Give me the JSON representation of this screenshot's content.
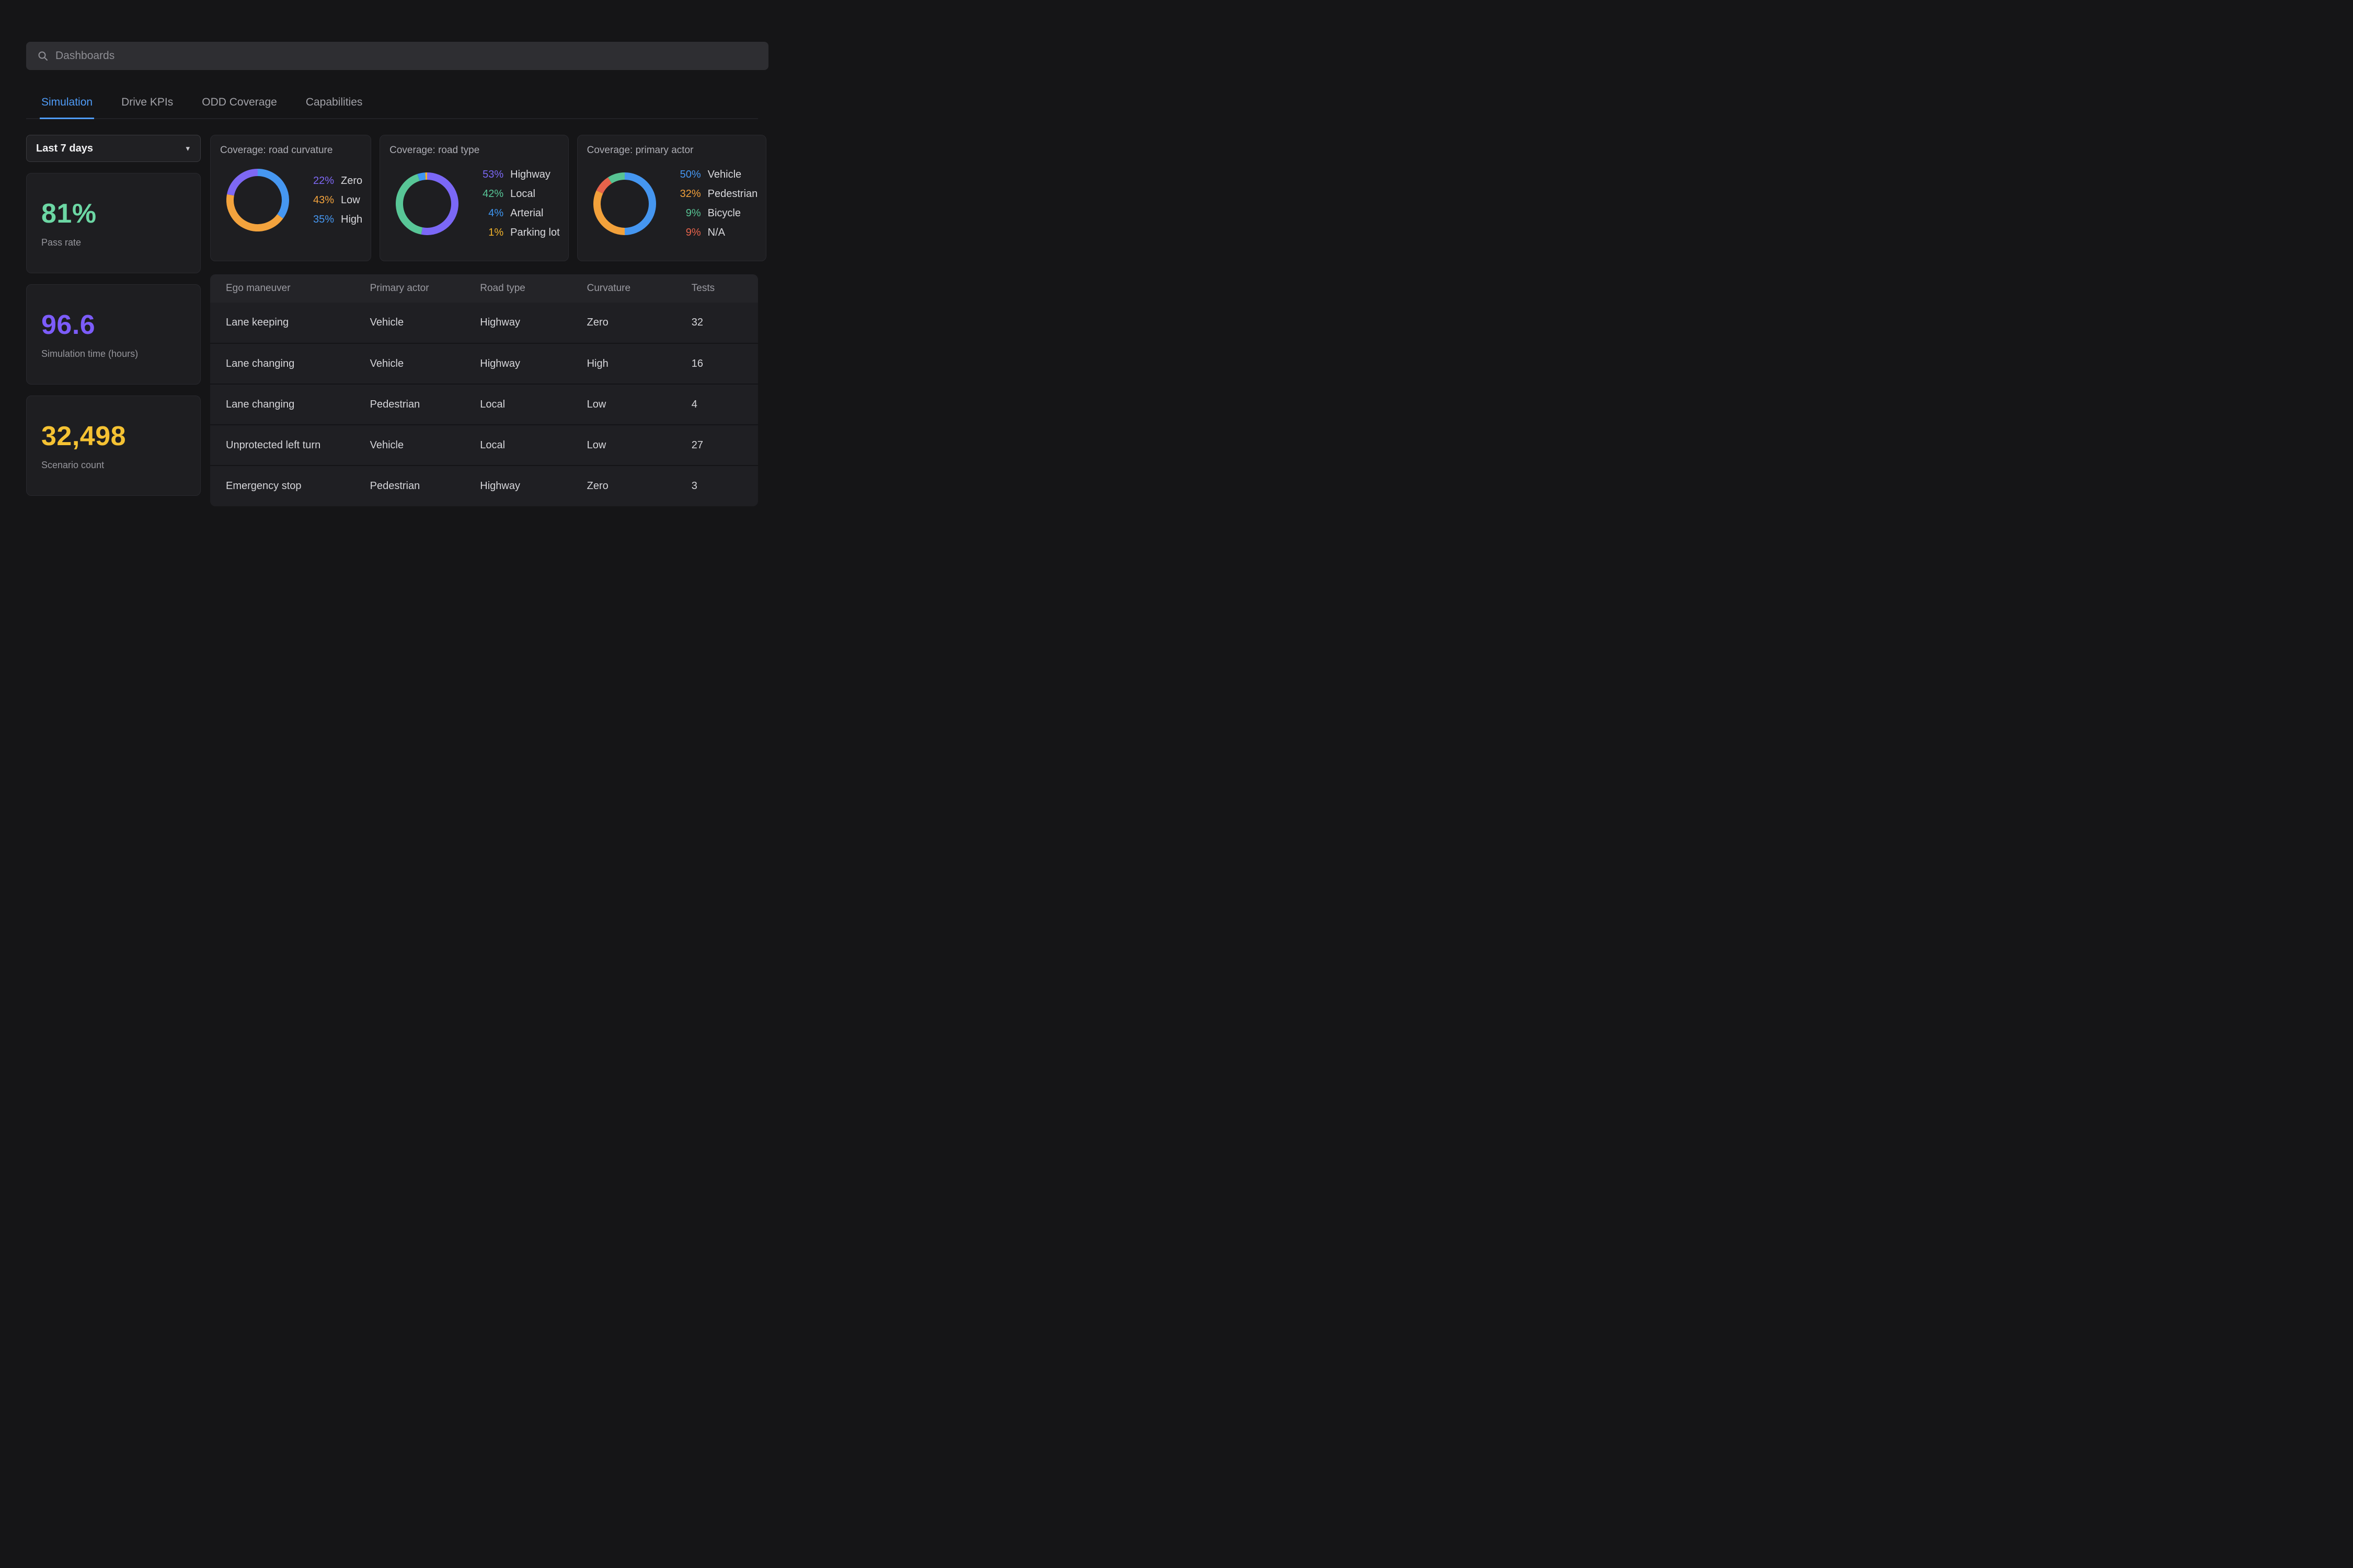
{
  "theme": {
    "accent": "#4f9cf8",
    "background": "#151517",
    "card_background": "#1e1e21"
  },
  "search": {
    "placeholder": "Dashboards"
  },
  "tabs": [
    {
      "label": "Simulation",
      "active": true
    },
    {
      "label": "Drive KPIs",
      "active": false
    },
    {
      "label": "ODD Coverage",
      "active": false
    },
    {
      "label": "Capabilities",
      "active": false
    }
  ],
  "filter": {
    "value": "Last 7 days",
    "caret": "▾"
  },
  "kpis": [
    {
      "value": "81%",
      "label": "Pass rate",
      "color": "#6cd7a4"
    },
    {
      "value": "96.6",
      "label": "Simulation time (hours)",
      "color": "#7c5cfa"
    },
    {
      "value": "32,498",
      "label": "Scenario count",
      "color": "#f5c233"
    }
  ],
  "donut_cards": [
    {
      "title": "Coverage: road curvature",
      "legend": [
        {
          "pct": "22%",
          "label": "Zero",
          "color": "#7e68f4"
        },
        {
          "pct": "43%",
          "label": "Low",
          "color": "#f3a33d"
        },
        {
          "pct": "35%",
          "label": "High",
          "color": "#4697f1"
        }
      ],
      "arcs": [
        {
          "value": 35,
          "color": "#4697f1"
        },
        {
          "value": 43,
          "color": "#f3a33d"
        },
        {
          "value": 22,
          "color": "#7e68f4"
        }
      ]
    },
    {
      "title": "Coverage: road type",
      "legend": [
        {
          "pct": "53%",
          "label": "Highway",
          "color": "#7b68f6"
        },
        {
          "pct": "42%",
          "label": "Local",
          "color": "#58c697"
        },
        {
          "pct": "4%",
          "label": "Arterial",
          "color": "#3e96f2"
        },
        {
          "pct": "1%",
          "label": "Parking lot",
          "color": "#f2b32c"
        }
      ],
      "arcs": [
        {
          "value": 53,
          "color": "#7b68f6"
        },
        {
          "value": 42,
          "color": "#58c697"
        },
        {
          "value": 4,
          "color": "#3e96f2"
        },
        {
          "value": 1,
          "color": "#f2b32c"
        }
      ]
    },
    {
      "title": "Coverage: primary actor",
      "legend": [
        {
          "pct": "50%",
          "label": "Vehicle",
          "color": "#4596f0"
        },
        {
          "pct": "32%",
          "label": "Pedestrian",
          "color": "#f2a13b"
        },
        {
          "pct": "9%",
          "label": "Bicycle",
          "color": "#57c393"
        },
        {
          "pct": "9%",
          "label": "N/A",
          "color": "#e7634b"
        }
      ],
      "arcs": [
        {
          "value": 50,
          "color": "#4596f0"
        },
        {
          "value": 32,
          "color": "#f2a13b"
        },
        {
          "value": 9,
          "color": "#e7634b"
        },
        {
          "value": 9,
          "color": "#57c393"
        }
      ]
    }
  ],
  "table": {
    "columns": [
      "Ego maneuver",
      "Primary actor",
      "Road type",
      "Curvature",
      "Tests"
    ],
    "rows": [
      [
        "Lane keeping",
        "Vehicle",
        "Highway",
        "Zero",
        "32"
      ],
      [
        "Lane changing",
        "Vehicle",
        "Highway",
        "High",
        "16"
      ],
      [
        "Lane changing",
        "Pedestrian",
        "Local",
        "Low",
        "4"
      ],
      [
        "Unprotected left turn",
        "Vehicle",
        "Local",
        "Low",
        "27"
      ],
      [
        "Emergency stop",
        "Pedestrian",
        "Highway",
        "Zero",
        "3"
      ]
    ]
  },
  "chart_data": [
    {
      "type": "pie",
      "donut": true,
      "title": "Coverage: road curvature",
      "labels": [
        "Zero",
        "Low",
        "High"
      ],
      "values": [
        22,
        43,
        35
      ],
      "colors": [
        "#7e68f4",
        "#f3a33d",
        "#4697f1"
      ],
      "legend_position": "right"
    },
    {
      "type": "pie",
      "donut": true,
      "title": "Coverage: road type",
      "labels": [
        "Highway",
        "Local",
        "Arterial",
        "Parking lot"
      ],
      "values": [
        53,
        42,
        4,
        1
      ],
      "colors": [
        "#7b68f6",
        "#58c697",
        "#3e96f2",
        "#f2b32c"
      ],
      "legend_position": "right"
    },
    {
      "type": "pie",
      "donut": true,
      "title": "Coverage: primary actor",
      "labels": [
        "Vehicle",
        "Pedestrian",
        "Bicycle",
        "N/A"
      ],
      "values": [
        50,
        32,
        9,
        9
      ],
      "colors": [
        "#4596f0",
        "#f2a13b",
        "#57c393",
        "#e7634b"
      ],
      "legend_position": "right"
    }
  ]
}
